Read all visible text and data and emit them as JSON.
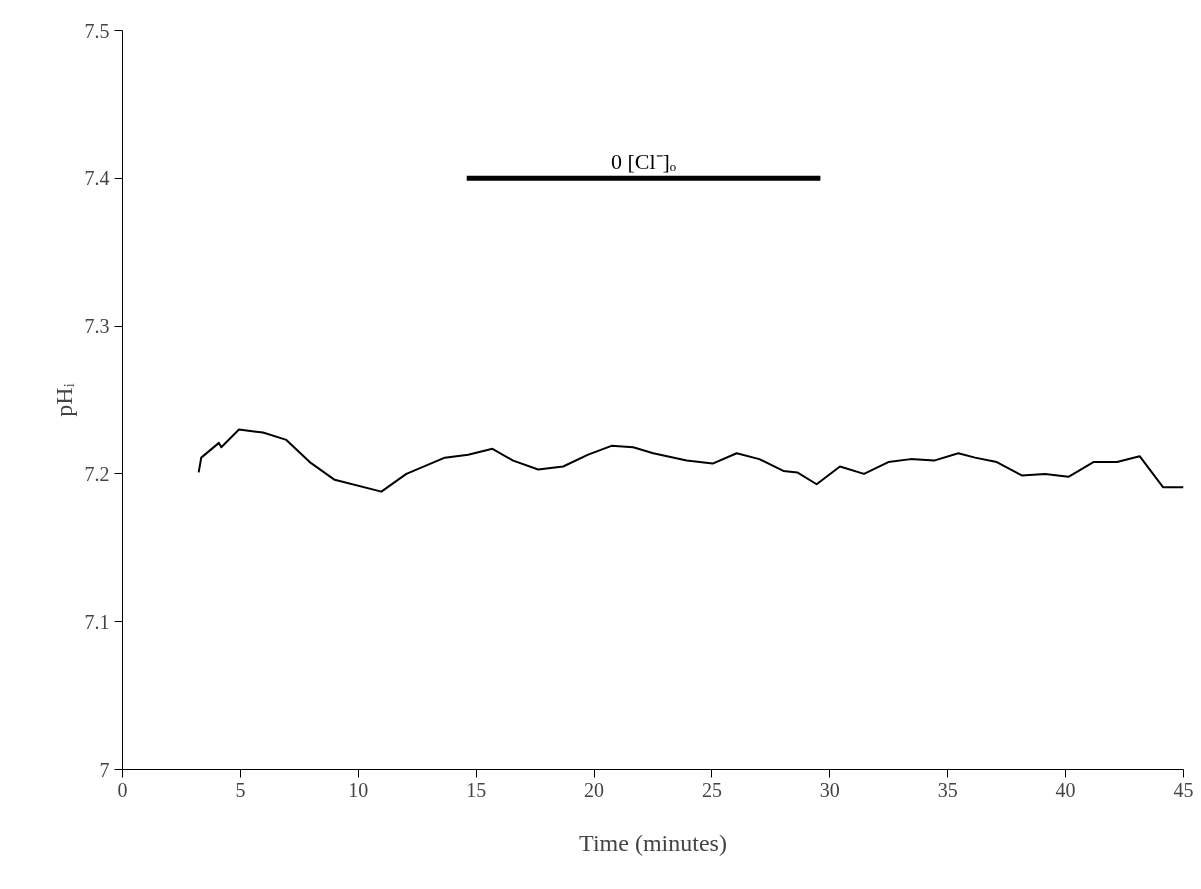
{
  "chart_data": {
    "type": "line",
    "xlabel": "Time (minutes)",
    "ylabel": "pHᵢ",
    "xlim": [
      0,
      45
    ],
    "xticks": [
      0,
      5,
      10,
      15,
      20,
      25,
      30,
      35,
      40,
      45
    ],
    "ylim": [
      7,
      7.5
    ],
    "yticks": [
      7,
      7.1,
      7.2,
      7.3,
      7.4,
      7.5
    ],
    "grid": false,
    "marker": "none",
    "line_style": "solid",
    "series": [
      {
        "color": "#000000",
        "x": [
          3.23,
          3.34,
          4.09,
          4.19,
          4.94,
          5.96,
          6.95,
          7.94,
          9.0,
          10.98,
          12.04,
          13.67,
          14.66,
          15.69,
          16.57,
          17.63,
          18.69,
          19.75,
          20.74,
          21.66,
          22.51,
          23.93,
          25.03,
          26.05,
          27.01,
          28.03,
          28.62,
          29.44,
          30.43,
          31.45,
          32.48,
          33.43,
          34.42,
          35.45,
          36.16,
          37.08,
          38.14,
          39.13,
          40.12,
          41.18,
          42.18,
          43.14,
          44.13,
          45.0
        ],
        "values": [
          7.201,
          7.211,
          7.221,
          7.218,
          7.23,
          7.228,
          7.223,
          7.208,
          7.196,
          7.188,
          7.2,
          7.211,
          7.213,
          7.217,
          7.209,
          7.203,
          7.205,
          7.213,
          7.219,
          7.218,
          7.214,
          7.209,
          7.207,
          7.214,
          7.21,
          7.202,
          7.201,
          7.193,
          7.205,
          7.2,
          7.208,
          7.21,
          7.209,
          7.214,
          7.211,
          7.208,
          7.199,
          7.2,
          7.198,
          7.208,
          7.208,
          7.212,
          7.191,
          7.191
        ]
      },
      {
        "name": "0 [Cl⁻]ₒ",
        "color": "#000000",
        "x": [
          14.6,
          29.6
        ],
        "values": [
          7.4,
          7.4
        ]
      }
    ]
  }
}
